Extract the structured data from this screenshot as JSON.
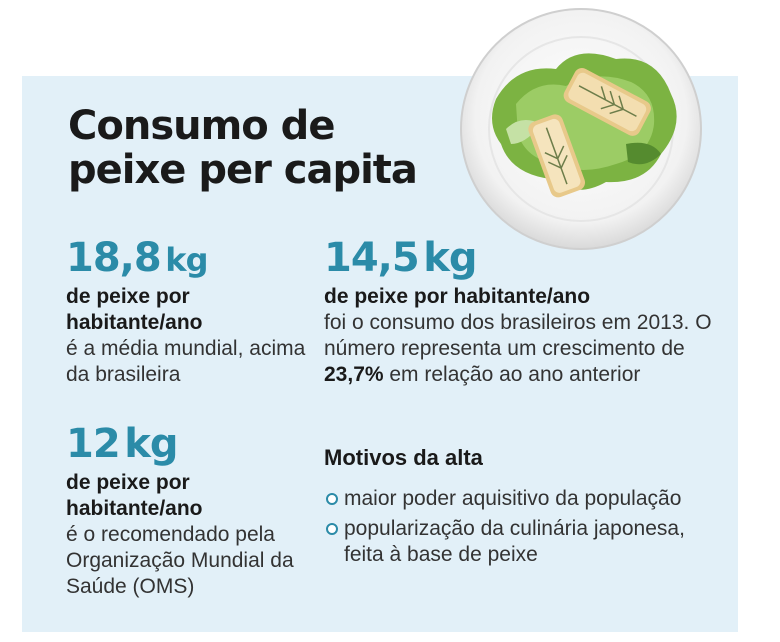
{
  "title": "Consumo de peixe per capita",
  "world": {
    "value": "18,8",
    "unit": "kg",
    "bold": "de peixe por habitante/ano",
    "text": "é a média mundial, acima da brasileira"
  },
  "brazil": {
    "value": "14,5",
    "unit": "kg",
    "bold": "de peixe por habitante/ano",
    "text_before": "foi o consumo dos brasileiros em 2013. O número representa um crescimento de ",
    "highlight": "23,7%",
    "text_after": " em relação ao ano anterior"
  },
  "recommended": {
    "value": "12",
    "unit": "kg",
    "bold": "de peixe por habitante/ano",
    "text": "é o recomendado pela Organização Mundial da Saúde (OMS)"
  },
  "reasons": {
    "title": "Motivos da alta",
    "items": [
      "maior poder aquisitivo da população",
      "popularização da culinária japonesa, feita à base de peixe"
    ]
  },
  "colors": {
    "accent": "#2b8ba8",
    "panel": "#e2f0f8"
  },
  "icons": {
    "plate": "fish-dish-photo",
    "bullet": "circle-bullet-icon"
  }
}
